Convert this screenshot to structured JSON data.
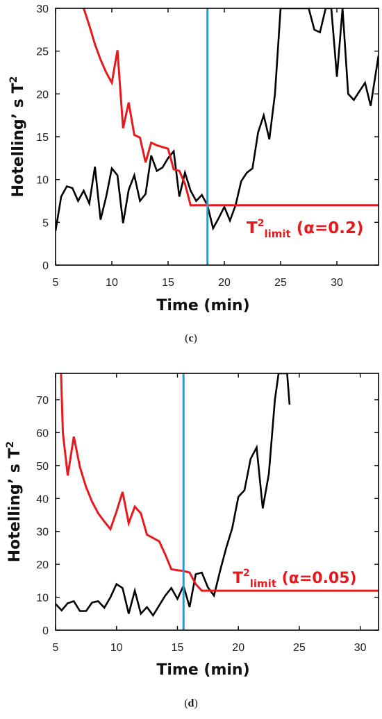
{
  "chart_data": [
    {
      "type": "line",
      "panel_label": "(c)",
      "xlabel": "Time (min)",
      "ylabel_main": "Hotelling’ s T",
      "ylabel_sup": "2",
      "xlim": [
        5,
        33.7
      ],
      "ylim": [
        0,
        30
      ],
      "xticks": [
        5,
        10,
        15,
        20,
        25,
        30
      ],
      "yticks": [
        0,
        5,
        10,
        15,
        20,
        25,
        30
      ],
      "vline_x": 18.5,
      "limit_label": {
        "t": "T",
        "sup": "2",
        "sub": "limit",
        "rest": " (α=0.2)"
      },
      "colors": {
        "statistic": "#000000",
        "limit": "#e8191c",
        "vline": "#1aa0d8"
      },
      "series": [
        {
          "role": "statistic",
          "x": [
            5,
            5.5,
            6,
            6.5,
            7,
            7.5,
            8,
            8.5,
            9,
            9.5,
            10,
            10.5,
            11,
            11.5,
            12,
            12.5,
            13,
            13.5,
            14,
            14.5,
            15,
            15.5,
            16,
            16.5,
            17,
            17.5,
            18,
            18.5,
            19,
            19.5,
            20,
            20.5,
            21,
            21.5,
            22,
            22.5,
            23,
            23.5,
            24,
            24.5,
            25,
            25.5,
            26,
            26.5,
            27,
            27.5,
            28,
            28.5,
            29,
            29.5,
            30,
            30.5,
            31,
            31.5,
            32,
            32.5,
            33,
            33.7
          ],
          "y": [
            4.0,
            8.0,
            9.2,
            9.0,
            7.5,
            8.7,
            7.2,
            11.5,
            5.3,
            8.0,
            11.3,
            10.5,
            4.9,
            8.8,
            10.5,
            7.5,
            8.3,
            12.8,
            11.0,
            11.4,
            12.5,
            13.3,
            8.0,
            10.8,
            8.7,
            7.5,
            8.2,
            7.0,
            4.3,
            5.5,
            6.8,
            5.2,
            7.0,
            9.8,
            10.8,
            11.3,
            15.5,
            17.5,
            14.7,
            20.0,
            30.0,
            30.0,
            30.0,
            30.0,
            30.0,
            30.0,
            27.5,
            27.2,
            30.0,
            30.0,
            22.0,
            30.0,
            20.0,
            19.3,
            20.3,
            21.3,
            18.6,
            24.5
          ]
        },
        {
          "role": "limit",
          "x": [
            7.5,
            8,
            8.5,
            9,
            9.5,
            10,
            10.5,
            11,
            11.5,
            12,
            12.5,
            13,
            13.5,
            14,
            14.5,
            15,
            15.5,
            16,
            16.5,
            17,
            17.5,
            18,
            18.5,
            19,
            33.7
          ],
          "y": [
            30.0,
            28.0,
            25.8,
            24.0,
            22.5,
            21.3,
            25.1,
            16.0,
            19.0,
            15.2,
            14.9,
            12.0,
            14.3,
            14.0,
            13.8,
            13.6,
            11.2,
            11.0,
            9.5,
            7.0,
            7.0,
            7.0,
            7.0,
            7.0,
            7.0
          ]
        }
      ]
    },
    {
      "type": "line",
      "panel_label": "(d)",
      "xlabel": "Time (min)",
      "ylabel_main": "Hotelling’ s T",
      "ylabel_sup": "2",
      "xlim": [
        5,
        31.5
      ],
      "ylim": [
        0,
        78
      ],
      "xticks": [
        5,
        10,
        15,
        20,
        25,
        30
      ],
      "yticks": [
        0,
        10,
        20,
        30,
        40,
        50,
        60,
        70
      ],
      "vline_x": 15.5,
      "limit_label": {
        "t": "T",
        "sup": "2",
        "sub": "limit",
        "rest": " (α=0.05)"
      },
      "colors": {
        "statistic": "#000000",
        "limit": "#e8191c",
        "vline": "#1aa0d8"
      },
      "series": [
        {
          "role": "statistic",
          "x": [
            5,
            5.5,
            6,
            6.5,
            7,
            7.5,
            8,
            8.5,
            9,
            9.5,
            10,
            10.5,
            11,
            11.5,
            12,
            12.5,
            13,
            13.5,
            14,
            14.5,
            15,
            15.5,
            16,
            16.5,
            17,
            17.5,
            18,
            18.5,
            19,
            19.5,
            20,
            20.5,
            21,
            21.5,
            22,
            22.5,
            23,
            23.3,
            23.6,
            24,
            24.2
          ],
          "y": [
            8.0,
            6.0,
            8.2,
            8.8,
            5.8,
            5.8,
            8.4,
            8.8,
            6.8,
            10.0,
            14.0,
            12.8,
            5.0,
            12.0,
            5.0,
            7.0,
            4.5,
            7.5,
            10.5,
            12.8,
            9.5,
            13.5,
            7.0,
            17.0,
            17.5,
            13.0,
            10.5,
            18.0,
            25.0,
            31.0,
            40.5,
            42.5,
            52.0,
            55.5,
            37.0,
            47.5,
            70.0,
            78.0,
            78.0,
            78.0,
            68.5
          ]
        },
        {
          "role": "limit",
          "x": [
            5.45,
            5.6,
            6,
            6.5,
            7,
            7.5,
            8,
            8.5,
            9,
            9.5,
            10,
            10.5,
            11,
            11.5,
            12,
            12.5,
            13,
            13.5,
            14,
            14.5,
            15,
            15.5,
            16,
            16.5,
            17,
            17.5,
            18,
            31.5
          ],
          "y": [
            78.0,
            60.0,
            47.0,
            58.8,
            49.5,
            43.5,
            39.0,
            35.5,
            33.0,
            30.7,
            36.0,
            42.0,
            32.5,
            37.5,
            35.5,
            29.0,
            28.0,
            27.0,
            23.0,
            18.5,
            18.2,
            18.0,
            17.5,
            14.0,
            12.0,
            12.0,
            12.0,
            12.0
          ]
        }
      ]
    }
  ]
}
